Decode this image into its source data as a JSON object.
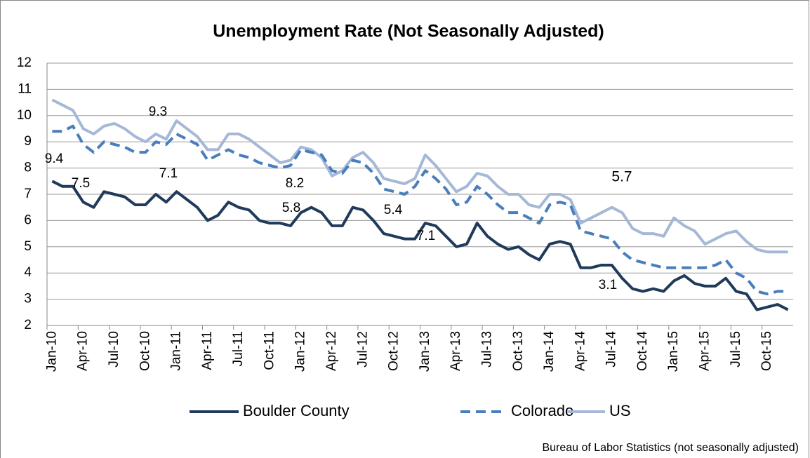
{
  "chart_data": {
    "type": "line",
    "title": "Unemployment Rate (Not Seasonally Adjusted)",
    "source": "Bureau of Labor Statistics (not seasonally adjusted)",
    "categories": [
      "Jan-10",
      null,
      null,
      "Apr-10",
      null,
      null,
      "Jul-10",
      null,
      null,
      "Oct-10",
      null,
      null,
      "Jan-11",
      null,
      null,
      "Apr-11",
      null,
      null,
      "Jul-11",
      null,
      null,
      "Oct-11",
      null,
      null,
      "Jan-12",
      null,
      null,
      "Apr-12",
      null,
      null,
      "Jul-12",
      null,
      null,
      "Oct-12",
      null,
      null,
      "Jan-13",
      null,
      null,
      "Apr-13",
      null,
      null,
      "Jul-13",
      null,
      null,
      "Oct-13",
      null,
      null,
      "Jan-14",
      null,
      null,
      "Apr-14",
      null,
      null,
      "Jul-14",
      null,
      null,
      "Oct-14",
      null,
      null,
      "Jan-15",
      null,
      null,
      "Apr-15",
      null,
      null,
      "Jul-15",
      null,
      null,
      "Oct-15",
      null,
      null
    ],
    "series": [
      {
        "name": "Boulder County",
        "color": "#1f3a5a",
        "dash": "solid",
        "values": [
          7.5,
          7.3,
          7.3,
          6.7,
          6.5,
          7.1,
          7.0,
          6.9,
          6.6,
          6.6,
          7.0,
          6.7,
          7.1,
          6.8,
          6.5,
          6.0,
          6.2,
          6.7,
          6.5,
          6.4,
          6.0,
          5.9,
          5.9,
          5.8,
          6.3,
          6.5,
          6.3,
          5.8,
          5.8,
          6.5,
          6.4,
          6.0,
          5.5,
          5.4,
          5.3,
          5.3,
          5.9,
          5.8,
          5.4,
          5.0,
          5.1,
          5.9,
          5.4,
          5.1,
          4.9,
          5.0,
          4.7,
          4.5,
          5.1,
          5.2,
          5.1,
          4.2,
          4.2,
          4.3,
          4.3,
          3.8,
          3.4,
          3.3,
          3.4,
          3.3,
          3.7,
          3.9,
          3.6,
          3.5,
          3.5,
          3.8,
          3.3,
          3.2,
          2.6,
          2.7,
          2.8,
          2.6
        ]
      },
      {
        "name": "Colorado",
        "color": "#4a7ebb",
        "dash": "dashed",
        "values": [
          9.4,
          9.4,
          9.6,
          8.9,
          8.6,
          9.0,
          8.9,
          8.8,
          8.6,
          8.6,
          9.0,
          8.9,
          9.3,
          9.1,
          8.9,
          8.3,
          8.5,
          8.7,
          8.5,
          8.4,
          8.2,
          8.1,
          8.0,
          8.1,
          8.7,
          8.6,
          8.5,
          7.9,
          7.8,
          8.3,
          8.2,
          7.8,
          7.2,
          7.1,
          7.0,
          7.3,
          7.9,
          7.6,
          7.2,
          6.6,
          6.7,
          7.3,
          7.0,
          6.6,
          6.3,
          6.3,
          6.1,
          5.9,
          6.6,
          6.7,
          6.6,
          5.6,
          5.5,
          5.4,
          5.3,
          4.8,
          4.5,
          4.4,
          4.3,
          4.2,
          4.2,
          4.2,
          4.2,
          4.2,
          4.3,
          4.5,
          4.0,
          3.8,
          3.3,
          3.2,
          3.3,
          3.3
        ]
      },
      {
        "name": "US",
        "color": "#a5b8d7",
        "dash": "solid",
        "values": [
          10.6,
          10.4,
          10.2,
          9.5,
          9.3,
          9.6,
          9.7,
          9.5,
          9.2,
          9.0,
          9.3,
          9.1,
          9.8,
          9.5,
          9.2,
          8.7,
          8.7,
          9.3,
          9.3,
          9.1,
          8.8,
          8.5,
          8.2,
          8.3,
          8.8,
          8.7,
          8.4,
          7.7,
          7.9,
          8.4,
          8.6,
          8.2,
          7.6,
          7.5,
          7.4,
          7.6,
          8.5,
          8.1,
          7.6,
          7.1,
          7.3,
          7.8,
          7.7,
          7.3,
          7.0,
          7.0,
          6.6,
          6.5,
          7.0,
          7.0,
          6.8,
          5.9,
          6.1,
          6.3,
          6.5,
          6.3,
          5.7,
          5.5,
          5.5,
          5.4,
          6.1,
          5.8,
          5.6,
          5.1,
          5.3,
          5.5,
          5.6,
          5.2,
          4.9,
          4.8,
          4.8,
          4.8
        ]
      }
    ],
    "annotations": [
      "9.4",
      "7.5",
      "9.3",
      "7.1",
      "8.2",
      "5.8",
      "5.4",
      "7.1",
      "5.7",
      "3.1"
    ],
    "ylim": [
      2,
      12
    ],
    "yticks": [
      2,
      3,
      4,
      5,
      6,
      7,
      8,
      9,
      10,
      11,
      12
    ],
    "grid": true,
    "legend": "bottom"
  }
}
